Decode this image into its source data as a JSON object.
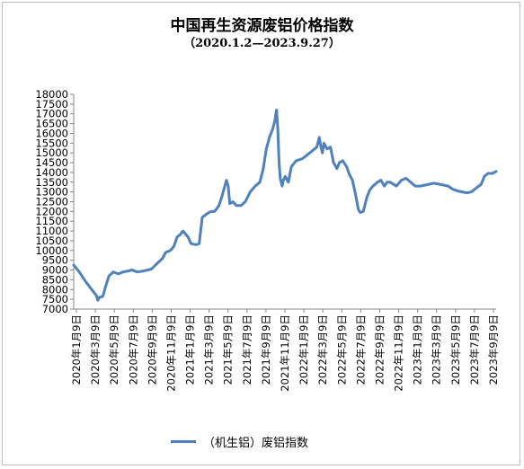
{
  "chart_data": {
    "type": "line",
    "title": "中国再生资源废铝价格指数",
    "subtitle": "（2020.1.2—2023.9.27）",
    "legend_position": "bottom",
    "grid": false,
    "ylim": [
      7000,
      18000
    ],
    "y_ticks": [
      7000,
      7500,
      8000,
      8500,
      9000,
      9500,
      10000,
      10500,
      11000,
      11500,
      12000,
      12500,
      13000,
      13500,
      14000,
      14500,
      15000,
      15500,
      16000,
      16500,
      17000,
      17500,
      18000
    ],
    "x_ticks": [
      "2020年1月9日",
      "2020年3月9日",
      "2020年5月9日",
      "2020年7月9日",
      "2020年9月9日",
      "2020年11月9日",
      "2021年1月9日",
      "2021年3月9日",
      "2021年5月9日",
      "2021年7月9日",
      "2021年9月9日",
      "2021年11月9日",
      "2022年1月9日",
      "2022年3月9日",
      "2022年5月9日",
      "2022年7月9日",
      "2022年9月9日",
      "2022年11月9日",
      "2023年1月9日",
      "2023年3月9日",
      "2023年5月9日",
      "2023年7月9日",
      "2023年9月9日"
    ],
    "series": [
      {
        "name": "（机生铝）废铝指数",
        "color": "#4f81bd",
        "points": [
          [
            "2020-01-02",
            9250
          ],
          [
            "2020-01-20",
            8900
          ],
          [
            "2020-02-10",
            8400
          ],
          [
            "2020-03-05",
            7900
          ],
          [
            "2020-03-15",
            7700
          ],
          [
            "2020-03-20",
            7450
          ],
          [
            "2020-03-25",
            7600
          ],
          [
            "2020-04-05",
            7650
          ],
          [
            "2020-04-15",
            8200
          ],
          [
            "2020-04-25",
            8700
          ],
          [
            "2020-05-09",
            8900
          ],
          [
            "2020-05-25",
            8800
          ],
          [
            "2020-06-10",
            8900
          ],
          [
            "2020-06-25",
            8950
          ],
          [
            "2020-07-09",
            9000
          ],
          [
            "2020-07-25",
            8900
          ],
          [
            "2020-08-15",
            8950
          ],
          [
            "2020-09-09",
            9050
          ],
          [
            "2020-09-25",
            9300
          ],
          [
            "2020-10-15",
            9600
          ],
          [
            "2020-10-25",
            9900
          ],
          [
            "2020-11-09",
            10000
          ],
          [
            "2020-11-20",
            10200
          ],
          [
            "2020-12-01",
            10700
          ],
          [
            "2020-12-10",
            10800
          ],
          [
            "2020-12-20",
            11000
          ],
          [
            "2021-01-05",
            10700
          ],
          [
            "2021-01-15",
            10350
          ],
          [
            "2021-01-30",
            10300
          ],
          [
            "2021-02-10",
            10350
          ],
          [
            "2021-02-20",
            11700
          ],
          [
            "2021-03-09",
            11900
          ],
          [
            "2021-03-20",
            12000
          ],
          [
            "2021-04-01",
            12000
          ],
          [
            "2021-04-15",
            12300
          ],
          [
            "2021-04-25",
            12800
          ],
          [
            "2021-05-09",
            13600
          ],
          [
            "2021-05-15",
            13300
          ],
          [
            "2021-05-20",
            12400
          ],
          [
            "2021-05-30",
            12500
          ],
          [
            "2021-06-10",
            12300
          ],
          [
            "2021-06-25",
            12300
          ],
          [
            "2021-07-09",
            12500
          ],
          [
            "2021-07-25",
            13000
          ],
          [
            "2021-08-10",
            13300
          ],
          [
            "2021-08-25",
            13500
          ],
          [
            "2021-09-05",
            14200
          ],
          [
            "2021-09-15",
            15200
          ],
          [
            "2021-09-25",
            15800
          ],
          [
            "2021-10-05",
            16200
          ],
          [
            "2021-10-12",
            16600
          ],
          [
            "2021-10-18",
            17200
          ],
          [
            "2021-10-22",
            16200
          ],
          [
            "2021-10-26",
            14500
          ],
          [
            "2021-10-30",
            13700
          ],
          [
            "2021-11-05",
            13300
          ],
          [
            "2021-11-09",
            13600
          ],
          [
            "2021-11-15",
            13800
          ],
          [
            "2021-11-25",
            13500
          ],
          [
            "2021-12-05",
            14300
          ],
          [
            "2021-12-20",
            14600
          ],
          [
            "2022-01-09",
            14700
          ],
          [
            "2022-01-25",
            14900
          ],
          [
            "2022-02-10",
            15100
          ],
          [
            "2022-02-25",
            15300
          ],
          [
            "2022-03-05",
            15800
          ],
          [
            "2022-03-09",
            15400
          ],
          [
            "2022-03-15",
            15000
          ],
          [
            "2022-03-20",
            15500
          ],
          [
            "2022-03-30",
            15200
          ],
          [
            "2022-04-10",
            15300
          ],
          [
            "2022-04-20",
            14500
          ],
          [
            "2022-05-01",
            14200
          ],
          [
            "2022-05-09",
            14500
          ],
          [
            "2022-05-20",
            14600
          ],
          [
            "2022-06-01",
            14300
          ],
          [
            "2022-06-10",
            13900
          ],
          [
            "2022-06-20",
            13600
          ],
          [
            "2022-07-01",
            12800
          ],
          [
            "2022-07-09",
            12100
          ],
          [
            "2022-07-15",
            11950
          ],
          [
            "2022-07-25",
            12000
          ],
          [
            "2022-08-05",
            12700
          ],
          [
            "2022-08-15",
            13100
          ],
          [
            "2022-08-25",
            13300
          ],
          [
            "2022-09-09",
            13500
          ],
          [
            "2022-09-20",
            13600
          ],
          [
            "2022-10-01",
            13300
          ],
          [
            "2022-10-10",
            13500
          ],
          [
            "2022-10-20",
            13500
          ],
          [
            "2022-11-09",
            13300
          ],
          [
            "2022-11-25",
            13600
          ],
          [
            "2022-12-10",
            13700
          ],
          [
            "2022-12-25",
            13500
          ],
          [
            "2023-01-09",
            13300
          ],
          [
            "2023-01-25",
            13300
          ],
          [
            "2023-02-10",
            13350
          ],
          [
            "2023-02-25",
            13400
          ],
          [
            "2023-03-09",
            13450
          ],
          [
            "2023-03-25",
            13400
          ],
          [
            "2023-04-10",
            13350
          ],
          [
            "2023-04-25",
            13300
          ],
          [
            "2023-05-09",
            13150
          ],
          [
            "2023-05-25",
            13050
          ],
          [
            "2023-06-10",
            13000
          ],
          [
            "2023-06-25",
            12950
          ],
          [
            "2023-07-09",
            13000
          ],
          [
            "2023-07-25",
            13200
          ],
          [
            "2023-08-10",
            13400
          ],
          [
            "2023-08-20",
            13800
          ],
          [
            "2023-09-01",
            13950
          ],
          [
            "2023-09-15",
            13950
          ],
          [
            "2023-09-27",
            14050
          ]
        ]
      }
    ]
  }
}
